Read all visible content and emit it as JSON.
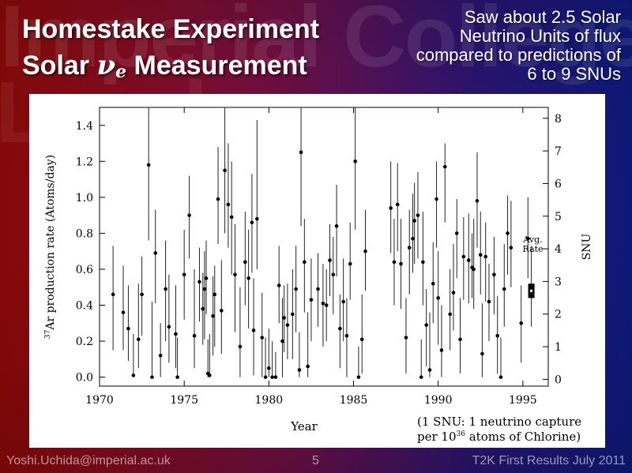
{
  "slide": {
    "watermark_line1": "Imperial College",
    "watermark_line2": "London",
    "title_line1": "Homestake Experiment",
    "title_line2_pre": "Solar ",
    "title_nu": "ν",
    "title_sub": "e",
    "title_line2_post": " Measurement",
    "note_lines": [
      "Saw about 2.5 Solar",
      "Neutrino Units of flux",
      "compared to predictions of",
      "6 to 9 SNUs"
    ],
    "footer_left": "Yoshi.Uchida@imperial.ac.uk",
    "footer_page": "5",
    "footer_right": "T2K First Results July 2011",
    "colors": {
      "bg_left": "#9a0a0a",
      "bg_right": "#101c8a",
      "title": "#ffffff",
      "footer": "#ffffff"
    }
  },
  "chart_data": {
    "type": "scatter",
    "xlabel": "Year",
    "ylabel_sup": "37",
    "ylabel": "Ar production rate (Atoms/day)",
    "ylabel_right": "SNU",
    "xlim": [
      1970,
      1996.5
    ],
    "ylim": [
      -0.05,
      1.5
    ],
    "y2lim": [
      -0.2083,
      8.3333
    ],
    "xticks": [
      1970,
      1975,
      1980,
      1985,
      1990,
      1995
    ],
    "yticks": [
      "0.0",
      "0.2",
      "0.4",
      "0.6",
      "0.8",
      "1.0",
      "1.2",
      "1.4"
    ],
    "y2ticks": [
      "0",
      "1",
      "2",
      "3",
      "4",
      "5",
      "6",
      "7",
      "8"
    ],
    "avg_label_lines": [
      "Avg.",
      "Rate"
    ],
    "avg_rate": {
      "x": 1995.5,
      "y": 0.48,
      "err": 0.04
    },
    "annotation_lines": [
      "(1 SNU: 1 neutrino capture",
      "per 10",
      "36",
      " atoms of Chlorine)"
    ],
    "points": [
      [
        1970.8,
        0.46,
        0.15,
        0.73
      ],
      [
        1971.4,
        0.36,
        0.15,
        0.62
      ],
      [
        1971.7,
        0.27,
        0.09,
        0.51
      ],
      [
        1972.0,
        0.01,
        0.0,
        0.24
      ],
      [
        1972.3,
        0.21,
        0.05,
        0.52
      ],
      [
        1972.5,
        0.46,
        0.23,
        0.67
      ],
      [
        1972.9,
        1.18,
        0.76,
        1.5
      ],
      [
        1973.1,
        0.0,
        0.0,
        0.42
      ],
      [
        1973.3,
        0.69,
        0.41,
        0.93
      ],
      [
        1973.6,
        0.12,
        0.0,
        0.3
      ],
      [
        1973.9,
        0.49,
        0.2,
        0.76
      ],
      [
        1974.1,
        0.28,
        0.08,
        0.57
      ],
      [
        1974.5,
        0.24,
        0.05,
        0.51
      ],
      [
        1974.6,
        0.0,
        0.0,
        0.22
      ],
      [
        1975.0,
        0.57,
        0.32,
        0.82
      ],
      [
        1975.3,
        0.9,
        0.66,
        1.12
      ],
      [
        1975.6,
        0.23,
        0.05,
        0.6
      ],
      [
        1975.9,
        0.53,
        0.31,
        0.72
      ],
      [
        1976.1,
        0.38,
        0.18,
        0.58
      ],
      [
        1976.2,
        0.49,
        0.21,
        0.7
      ],
      [
        1976.3,
        0.55,
        0.35,
        0.76
      ],
      [
        1976.4,
        0.02,
        0.0,
        0.21
      ],
      [
        1976.5,
        0.01,
        0.0,
        0.24
      ],
      [
        1976.7,
        0.34,
        0.12,
        0.56
      ],
      [
        1976.8,
        0.46,
        0.17,
        0.62
      ],
      [
        1977.0,
        0.99,
        0.74,
        1.28
      ],
      [
        1977.2,
        0.37,
        0.13,
        0.65
      ],
      [
        1977.4,
        1.15,
        0.8,
        1.5
      ],
      [
        1977.6,
        0.96,
        0.72,
        1.3
      ],
      [
        1977.8,
        0.89,
        0.57,
        1.2
      ],
      [
        1978.0,
        0.57,
        0.25,
        0.85
      ],
      [
        1978.3,
        0.17,
        0.0,
        0.5
      ],
      [
        1978.6,
        0.64,
        0.4,
        0.92
      ],
      [
        1978.8,
        0.55,
        0.27,
        0.82
      ],
      [
        1979.0,
        0.86,
        0.58,
        1.13
      ],
      [
        1979.1,
        0.26,
        0.01,
        0.55
      ],
      [
        1979.3,
        0.88,
        0.6,
        1.43
      ],
      [
        1979.6,
        0.22,
        0.0,
        0.47
      ],
      [
        1979.8,
        0.0,
        0.0,
        0.22
      ],
      [
        1980.0,
        0.05,
        0.0,
        0.27
      ],
      [
        1980.2,
        0.0,
        0.0,
        0.2
      ],
      [
        1980.4,
        0.0,
        0.0,
        0.14
      ],
      [
        1980.6,
        0.51,
        0.3,
        0.73
      ],
      [
        1980.8,
        0.2,
        0.0,
        0.44
      ],
      [
        1980.9,
        0.33,
        0.14,
        0.51
      ],
      [
        1981.1,
        0.29,
        0.1,
        0.52
      ],
      [
        1981.4,
        0.35,
        0.1,
        0.6
      ],
      [
        1981.6,
        0.49,
        0.25,
        0.73
      ],
      [
        1981.8,
        0.04,
        0.0,
        0.25
      ],
      [
        1981.9,
        1.25,
        0.84,
        1.5
      ],
      [
        1982.1,
        0.64,
        0.36,
        0.88
      ],
      [
        1982.3,
        0.06,
        0.0,
        0.36
      ],
      [
        1982.5,
        0.43,
        0.2,
        0.66
      ],
      [
        1982.9,
        0.49,
        0.28,
        0.69
      ],
      [
        1983.2,
        0.41,
        0.17,
        0.63
      ],
      [
        1983.4,
        0.4,
        0.2,
        0.6
      ],
      [
        1983.6,
        0.65,
        0.45,
        0.85
      ],
      [
        1983.8,
        0.57,
        0.35,
        0.78
      ],
      [
        1984.0,
        0.84,
        0.56,
        1.07
      ],
      [
        1984.2,
        0.27,
        0.05,
        0.46
      ],
      [
        1984.4,
        0.42,
        0.2,
        0.66
      ],
      [
        1984.6,
        0.23,
        0.0,
        0.44
      ],
      [
        1984.8,
        0.63,
        0.43,
        0.86
      ],
      [
        1985.1,
        1.2,
        0.82,
        1.5
      ],
      [
        1985.3,
        0.0,
        0.0,
        0.17
      ],
      [
        1985.5,
        0.21,
        0.02,
        0.46
      ],
      [
        1985.7,
        0.7,
        0.48,
        0.93
      ],
      [
        1987.2,
        0.94,
        0.69,
        1.2
      ],
      [
        1987.4,
        0.64,
        0.4,
        0.88
      ],
      [
        1987.6,
        0.96,
        0.7,
        1.19
      ],
      [
        1987.8,
        0.63,
        0.38,
        0.88
      ],
      [
        1988.1,
        0.22,
        0.02,
        0.44
      ],
      [
        1988.3,
        0.72,
        0.46,
        0.93
      ],
      [
        1988.5,
        0.77,
        0.58,
        1.02
      ],
      [
        1988.6,
        0.87,
        0.63,
        1.08
      ],
      [
        1988.8,
        0.9,
        0.66,
        1.14
      ],
      [
        1989.0,
        0.0,
        0.0,
        0.21
      ],
      [
        1989.1,
        0.64,
        0.4,
        0.92
      ],
      [
        1989.3,
        0.29,
        0.06,
        0.49
      ],
      [
        1989.5,
        0.04,
        0.0,
        0.36
      ],
      [
        1989.7,
        0.52,
        0.3,
        0.75
      ],
      [
        1989.9,
        0.99,
        0.72,
        1.2
      ],
      [
        1990.0,
        0.44,
        0.18,
        0.7
      ],
      [
        1990.2,
        0.15,
        0.0,
        0.4
      ],
      [
        1990.4,
        1.17,
        0.86,
        1.3
      ],
      [
        1990.7,
        0.35,
        0.15,
        0.6
      ],
      [
        1990.9,
        0.47,
        0.26,
        0.74
      ],
      [
        1991.1,
        0.8,
        0.55,
        0.99
      ],
      [
        1991.3,
        0.21,
        0.02,
        0.44
      ],
      [
        1991.5,
        0.67,
        0.43,
        0.89
      ],
      [
        1991.8,
        0.65,
        0.41,
        0.91
      ],
      [
        1992.0,
        0.61,
        0.44,
        0.8
      ],
      [
        1992.1,
        0.6,
        0.38,
        0.88
      ],
      [
        1992.3,
        0.98,
        0.72,
        1.25
      ],
      [
        1992.5,
        0.68,
        0.46,
        0.92
      ],
      [
        1992.6,
        0.13,
        0.0,
        0.41
      ],
      [
        1992.8,
        0.67,
        0.42,
        0.86
      ],
      [
        1993.0,
        0.42,
        0.2,
        0.63
      ],
      [
        1993.3,
        0.57,
        0.35,
        0.78
      ],
      [
        1993.5,
        0.23,
        0.02,
        0.45
      ],
      [
        1993.7,
        0.0,
        0.0,
        0.22
      ],
      [
        1993.9,
        0.49,
        0.28,
        0.74
      ],
      [
        1994.1,
        0.8,
        0.57,
        1.01
      ],
      [
        1994.3,
        0.72,
        0.5,
        0.98
      ],
      [
        1994.9,
        0.3,
        0.08,
        0.51
      ],
      [
        1995.3,
        0.77,
        0.55,
        1.0
      ],
      [
        1995.5,
        0.5,
        0.28,
        0.73
      ]
    ]
  }
}
